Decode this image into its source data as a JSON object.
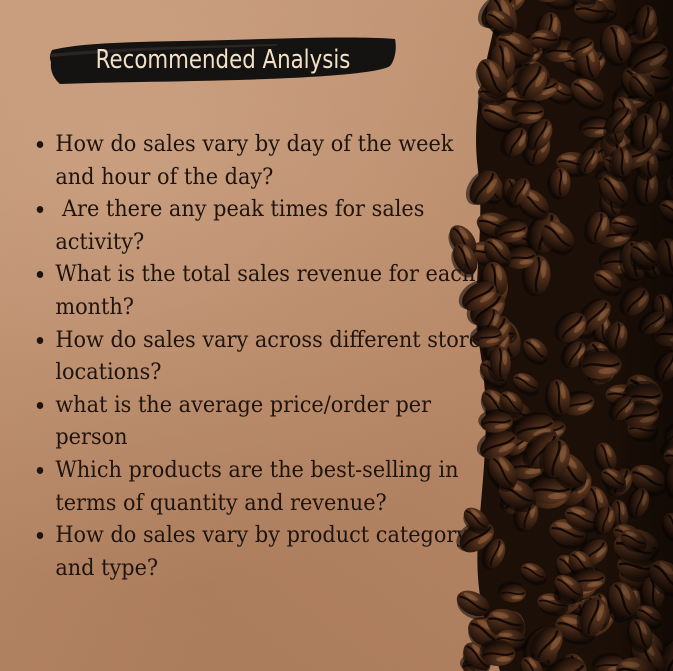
{
  "title": "Recommended Analysis",
  "questions": [
    "How do sales vary by day of the week and hour of the day?",
    " Are there any peak times for sales activity?",
    "What is the total sales revenue for each month?",
    "How do sales vary across different store locations?",
    "what is the average price/order per person",
    "Which products are the best-selling in terms of quantity and revenue?",
    "How do sales vary by product category and type?"
  ],
  "colors": {
    "background": "#b98b6a",
    "title_brush": "#151311",
    "title_text": "#f3e1c6",
    "body_text": "#1f140d"
  }
}
